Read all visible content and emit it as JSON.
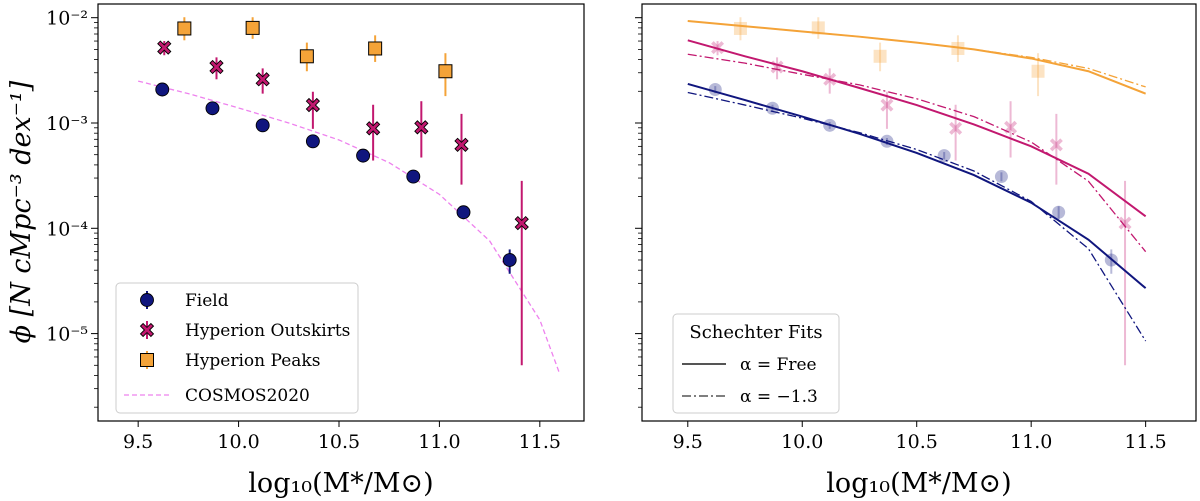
{
  "colors": {
    "field": "#10167e",
    "outskirts": "#c2186f",
    "peaks": "#f4a338",
    "cosmos": "#ee82ee"
  },
  "axes_text": {
    "ylabel": "ϕ  [N cMpc⁻³ dex⁻¹]",
    "xlabel_left": "log₁₀(M*/M⊙)",
    "xlabel_right": "log₁₀(M*/M⊙)",
    "xticks": [
      "9.5",
      "10.0",
      "10.5",
      "11.0",
      "11.5"
    ],
    "yticks": [
      "10⁻⁵",
      "10⁻⁴",
      "10⁻³",
      "10⁻²"
    ]
  },
  "legend_left": {
    "field": "Field",
    "outskirts": "Hyperion Outskirts",
    "peaks": "Hyperion Peaks",
    "cosmos": "COSMOS2020"
  },
  "legend_right": {
    "title": "Schechter Fits",
    "free": "α = Free",
    "fixed": "α = −1.3"
  },
  "chart_data": [
    {
      "type": "scatter",
      "panel": "left",
      "xlim": [
        9.3,
        11.72
      ],
      "ylim_log10": [
        -5.83,
        -1.87
      ],
      "yscale": "log",
      "series": [
        {
          "name": "Field",
          "marker": "circle",
          "x": [
            9.62,
            9.87,
            10.12,
            10.37,
            10.62,
            10.87,
            11.12,
            11.35
          ],
          "y": [
            0.00208,
            0.00138,
            0.00095,
            0.00067,
            0.00049,
            0.00031,
            0.000142,
            5e-05
          ],
          "err_lo": [
            0.00016,
            0.00011,
            7e-05,
            5e-05,
            4e-05,
            3e-05,
            2e-05,
            1.3e-05
          ],
          "err_hi": [
            0.00016,
            0.00011,
            7e-05,
            5e-05,
            4e-05,
            3e-05,
            2e-05,
            1.3e-05
          ]
        },
        {
          "name": "Hyperion Outskirts",
          "marker": "X",
          "x": [
            9.63,
            9.89,
            10.12,
            10.37,
            10.67,
            10.91,
            11.11,
            11.41
          ],
          "y": [
            0.0052,
            0.0034,
            0.0026,
            0.00148,
            0.00089,
            0.00091,
            0.00062,
            0.000112
          ],
          "err_lo": [
            0.0008,
            0.0008,
            0.0007,
            0.0006,
            0.00045,
            0.00044,
            0.00036,
            0.000107
          ],
          "err_hi": [
            0.0008,
            0.0008,
            0.0007,
            0.0005,
            0.0006,
            0.0007,
            0.0006,
            0.00017
          ]
        },
        {
          "name": "Hyperion Peaks",
          "marker": "square",
          "x": [
            9.73,
            10.07,
            10.34,
            10.68,
            11.03
          ],
          "y": [
            0.0079,
            0.008,
            0.0043,
            0.0051,
            0.0031
          ],
          "err_lo": [
            0.0018,
            0.0017,
            0.0012,
            0.0013,
            0.0013
          ],
          "err_hi": [
            0.0022,
            0.0021,
            0.0015,
            0.0017,
            0.0015
          ]
        },
        {
          "name": "COSMOS2020",
          "marker": "dashed-line",
          "x": [
            9.5,
            9.75,
            10.0,
            10.25,
            10.5,
            10.75,
            11.0,
            11.25,
            11.5,
            11.6
          ],
          "y": [
            0.0025,
            0.0019,
            0.00139,
            0.001,
            0.00069,
            0.00042,
            0.00021,
            7.6e-05,
            1.35e-05,
            4.1e-06
          ]
        }
      ]
    },
    {
      "type": "line",
      "panel": "right",
      "xlim": [
        9.3,
        11.72
      ],
      "ylim_log10": [
        -5.83,
        -1.87
      ],
      "yscale": "log",
      "series": [
        {
          "name": "Field Free",
          "style": "solid",
          "x": [
            9.5,
            9.75,
            10.0,
            10.25,
            10.5,
            10.75,
            11.0,
            11.25,
            11.5
          ],
          "y": [
            0.00235,
            0.00165,
            0.00115,
            0.00079,
            0.00052,
            0.00032,
            0.000175,
            7.8e-05,
            2.7e-05
          ]
        },
        {
          "name": "Field α=-1.3",
          "style": "dashdot",
          "x": [
            9.5,
            9.75,
            10.0,
            10.25,
            10.5,
            10.75,
            11.0,
            11.25,
            11.5
          ],
          "y": [
            0.00195,
            0.00148,
            0.00111,
            0.00081,
            0.00056,
            0.00035,
            0.00018,
            6.4e-05,
            8.5e-06
          ]
        },
        {
          "name": "Outskirts Free",
          "style": "solid",
          "x": [
            9.5,
            9.75,
            10.0,
            10.25,
            10.5,
            10.75,
            11.0,
            11.25,
            11.5
          ],
          "y": [
            0.0061,
            0.0043,
            0.0031,
            0.00215,
            0.00148,
            0.00097,
            0.0006,
            0.00033,
            0.00013
          ]
        },
        {
          "name": "Outskirts α=-1.3",
          "style": "dashdot",
          "x": [
            9.5,
            9.75,
            10.0,
            10.25,
            10.5,
            10.75,
            11.0,
            11.25,
            11.5
          ],
          "y": [
            0.0045,
            0.0037,
            0.0029,
            0.0023,
            0.0017,
            0.00115,
            0.00066,
            0.00028,
            6e-05
          ]
        },
        {
          "name": "Peaks Free",
          "style": "solid",
          "x": [
            9.5,
            9.75,
            10.0,
            10.25,
            10.5,
            10.75,
            11.0,
            11.25,
            11.5
          ],
          "y": [
            0.0093,
            0.0083,
            0.0074,
            0.0066,
            0.0058,
            0.005,
            0.0041,
            0.0031,
            0.0019
          ]
        },
        {
          "name": "Peaks α=-1.3",
          "style": "dashdot",
          "x": [
            9.5,
            9.75,
            10.0,
            10.25,
            10.5,
            10.75,
            11.0,
            11.25,
            11.5
          ],
          "y": [
            0.0093,
            0.0083,
            0.0074,
            0.0066,
            0.0058,
            0.005,
            0.0042,
            0.0033,
            0.0022
          ]
        }
      ]
    }
  ]
}
